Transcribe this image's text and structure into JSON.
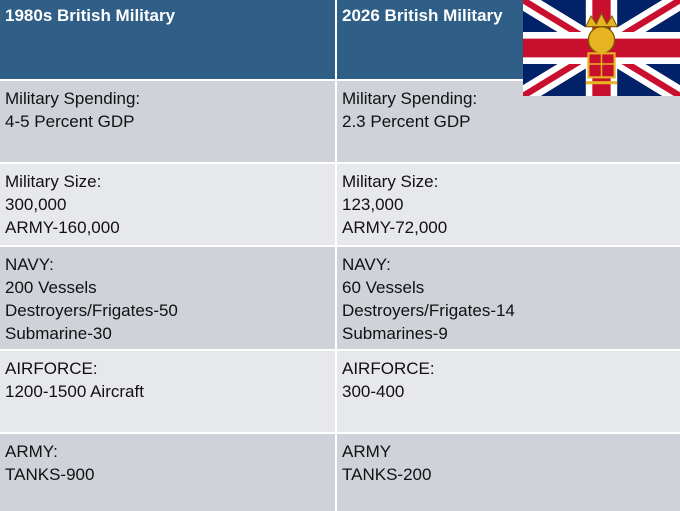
{
  "table": {
    "header": [
      "1980s British Military",
      "2026 British Military"
    ],
    "rows": [
      [
        [
          "Military Spending:",
          "4-5 Percent GDP"
        ],
        [
          "Military Spending:",
          "2.3 Percent GDP"
        ]
      ],
      [
        [
          "Military Size:",
          "300,000",
          "ARMY-160,000"
        ],
        [
          "Military Size:",
          "123,000",
          "ARMY-72,000"
        ]
      ],
      [
        [
          "NAVY:",
          "200 Vessels",
          "Destroyers/Frigates-50",
          "Submarine-30"
        ],
        [
          "NAVY:",
          "60 Vessels",
          "Destroyers/Frigates-14",
          "Submarines-9"
        ]
      ],
      [
        [
          "AIRFORCE:",
          "1200-1500 Aircraft"
        ],
        [
          "AIRFORCE:",
          "300-400"
        ]
      ],
      [
        [
          "ARMY:",
          "TANKS-900"
        ],
        [
          "ARMY",
          "TANKS-200"
        ]
      ]
    ]
  }
}
